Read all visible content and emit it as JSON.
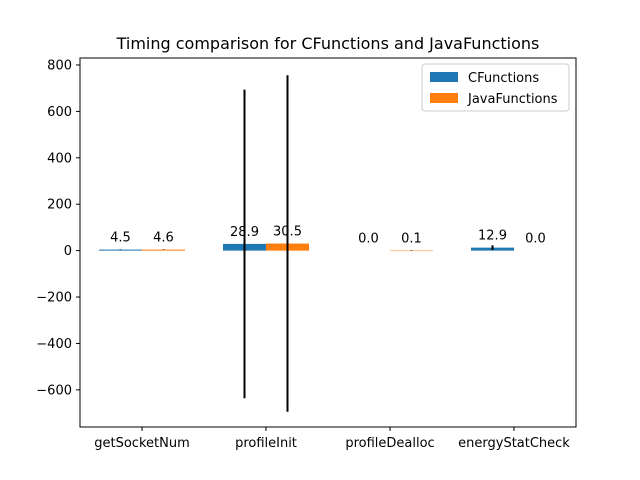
{
  "chart_data": {
    "type": "bar",
    "title": "Timing comparison for CFunctions and JavaFunctions",
    "xlabel": "",
    "ylabel": "",
    "categories": [
      "getSocketNum",
      "profileInit",
      "profileDealloc",
      "energyStatCheck"
    ],
    "series": [
      {
        "name": "CFunctions",
        "color": "#1f77b4",
        "values": [
          4.5,
          28.9,
          0.0,
          12.9
        ],
        "labels": [
          "4.5",
          "28.9",
          "0.0",
          "12.9"
        ],
        "error": [
          1,
          665,
          0,
          10
        ]
      },
      {
        "name": "JavaFunctions",
        "color": "#ff7f0e",
        "values": [
          4.6,
          30.5,
          0.1,
          0.0
        ],
        "labels": [
          "4.6",
          "30.5",
          "0.1",
          "0.0"
        ],
        "error": [
          1,
          725,
          1,
          0
        ]
      }
    ],
    "ylim": [
      -760,
      830
    ],
    "yticks": [
      -600,
      -400,
      -200,
      0,
      200,
      400,
      600,
      800
    ],
    "ytick_labels": [
      "−600",
      "−400",
      "−200",
      "0",
      "200",
      "400",
      "600",
      "800"
    ],
    "grid": false,
    "legend": "top-right",
    "error_bar_color": "#000000"
  }
}
